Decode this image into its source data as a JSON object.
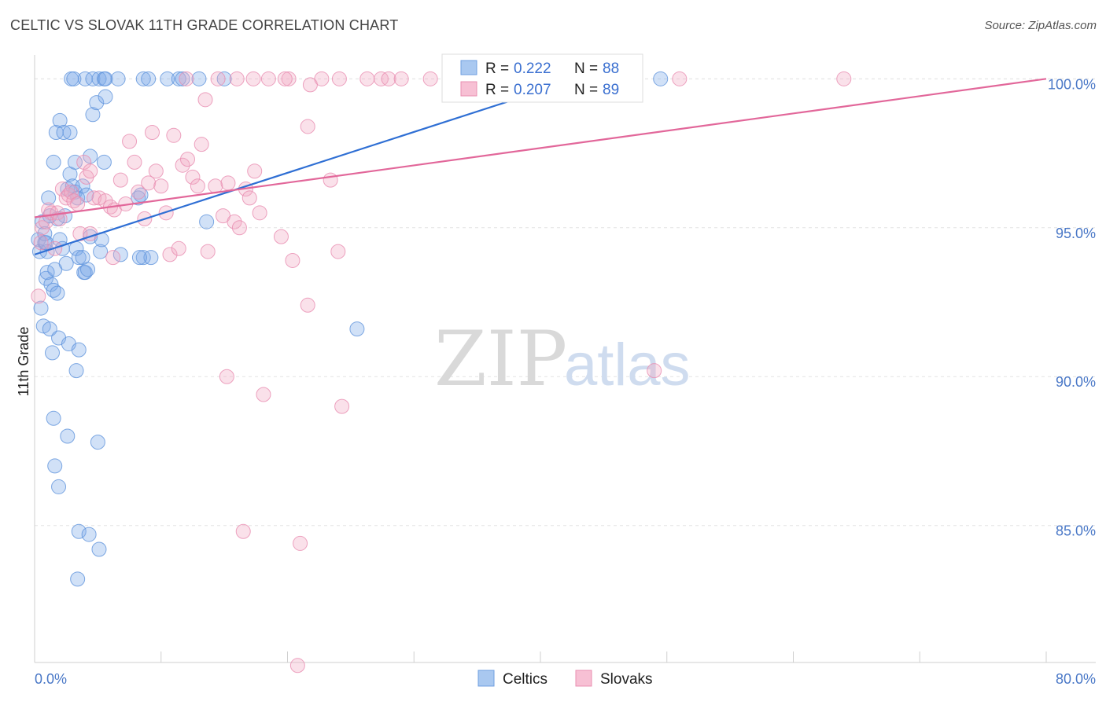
{
  "chart_data": {
    "type": "scatter",
    "title": "CELTIC VS SLOVAK 11TH GRADE CORRELATION CHART",
    "source": "Source: ZipAtlas.com",
    "ylabel": "11th Grade",
    "xlim": [
      0,
      80
    ],
    "ylim": [
      80.4,
      100.8
    ],
    "x_tick_labels": {
      "left": "0.0%",
      "right": "80.0%"
    },
    "y_ticks": [
      {
        "value": 100,
        "label": "100.0%"
      },
      {
        "value": 95,
        "label": "95.0%"
      },
      {
        "value": 90,
        "label": "90.0%"
      },
      {
        "value": 85,
        "label": "85.0%"
      }
    ],
    "legend_stats": [
      {
        "r_label": "R =",
        "r_value": "0.222",
        "n_label": "N =",
        "n_value": "88"
      },
      {
        "r_label": "R =",
        "r_value": "0.207",
        "n_label": "N =",
        "n_value": "89"
      }
    ],
    "series": [
      {
        "name": "Celtics",
        "color": "#7aaae8",
        "line_color": "#2f6fd4",
        "trend": {
          "x0": 0,
          "y0": 94.1,
          "x1": 43,
          "y1": 100.0
        },
        "points": [
          [
            0.3,
            94.6
          ],
          [
            0.4,
            94.2
          ],
          [
            0.6,
            95.2
          ],
          [
            0.8,
            94.5
          ],
          [
            0.9,
            93.3
          ],
          [
            1.0,
            93.5
          ],
          [
            1.1,
            96.0
          ],
          [
            1.2,
            95.4
          ],
          [
            0.5,
            92.3
          ],
          [
            0.7,
            91.7
          ],
          [
            1.3,
            93.1
          ],
          [
            1.5,
            92.9
          ],
          [
            1.6,
            93.6
          ],
          [
            1.8,
            92.8
          ],
          [
            2.0,
            94.6
          ],
          [
            2.2,
            94.3
          ],
          [
            2.4,
            95.4
          ],
          [
            2.6,
            96.3
          ],
          [
            2.8,
            96.8
          ],
          [
            3.0,
            96.4
          ],
          [
            3.2,
            96.2
          ],
          [
            3.4,
            96.0
          ],
          [
            1.5,
            97.2
          ],
          [
            1.7,
            98.2
          ],
          [
            2.0,
            98.6
          ],
          [
            2.3,
            98.2
          ],
          [
            2.8,
            98.2
          ],
          [
            3.2,
            97.2
          ],
          [
            4.6,
            98.8
          ],
          [
            4.9,
            99.2
          ],
          [
            5.6,
            99.4
          ],
          [
            5.5,
            97.2
          ],
          [
            4.4,
            97.4
          ],
          [
            3.3,
            94.3
          ],
          [
            3.5,
            94.0
          ],
          [
            3.8,
            94.0
          ],
          [
            3.9,
            93.5
          ],
          [
            4.0,
            93.5
          ],
          [
            4.2,
            93.6
          ],
          [
            5.2,
            94.2
          ],
          [
            4.4,
            94.7
          ],
          [
            5.3,
            94.6
          ],
          [
            1.0,
            94.2
          ],
          [
            0.8,
            94.8
          ],
          [
            0.9,
            94.5
          ],
          [
            1.2,
            91.6
          ],
          [
            1.4,
            90.8
          ],
          [
            1.9,
            91.3
          ],
          [
            2.7,
            91.1
          ],
          [
            3.3,
            90.2
          ],
          [
            3.5,
            90.9
          ],
          [
            1.5,
            88.6
          ],
          [
            2.6,
            88.0
          ],
          [
            5.0,
            87.8
          ],
          [
            1.6,
            87.0
          ],
          [
            1.9,
            86.3
          ],
          [
            3.5,
            84.8
          ],
          [
            4.3,
            84.7
          ],
          [
            5.1,
            84.2
          ],
          [
            3.4,
            83.2
          ],
          [
            8.6,
            94.0
          ],
          [
            9.2,
            94.0
          ],
          [
            8.3,
            94.0
          ],
          [
            8.2,
            96.0
          ],
          [
            8.4,
            96.1
          ],
          [
            13.6,
            95.2
          ],
          [
            25.5,
            91.6
          ],
          [
            2.9,
            100.0
          ],
          [
            3.1,
            100.0
          ],
          [
            4.0,
            100.0
          ],
          [
            4.6,
            100.0
          ],
          [
            5.1,
            100.0
          ],
          [
            5.5,
            100.0
          ],
          [
            5.6,
            100.0
          ],
          [
            6.6,
            100.0
          ],
          [
            8.6,
            100.0
          ],
          [
            9.0,
            100.0
          ],
          [
            10.5,
            100.0
          ],
          [
            11.4,
            100.0
          ],
          [
            11.7,
            100.0
          ],
          [
            13.0,
            100.0
          ],
          [
            15.0,
            100.0
          ],
          [
            49.5,
            100.0
          ],
          [
            3.8,
            96.4
          ],
          [
            6.8,
            94.1
          ],
          [
            4.1,
            96.1
          ],
          [
            2.5,
            93.8
          ],
          [
            1.8,
            95.3
          ]
        ]
      },
      {
        "name": "Slovaks",
        "color": "#f2a8c4",
        "line_color": "#e2679a",
        "trend": {
          "x0": 0,
          "y0": 95.35,
          "x1": 80,
          "y1": 100.0
        },
        "points": [
          [
            0.3,
            92.7
          ],
          [
            0.5,
            94.5
          ],
          [
            0.6,
            95.0
          ],
          [
            0.9,
            95.2
          ],
          [
            1.1,
            95.6
          ],
          [
            1.3,
            95.5
          ],
          [
            1.6,
            94.3
          ],
          [
            1.8,
            95.5
          ],
          [
            2.0,
            95.3
          ],
          [
            2.2,
            96.3
          ],
          [
            2.5,
            96.0
          ],
          [
            2.7,
            96.1
          ],
          [
            2.9,
            96.2
          ],
          [
            3.1,
            95.9
          ],
          [
            3.4,
            95.8
          ],
          [
            3.6,
            94.8
          ],
          [
            3.9,
            97.2
          ],
          [
            4.1,
            96.7
          ],
          [
            4.4,
            96.9
          ],
          [
            4.7,
            96.0
          ],
          [
            5.1,
            96.0
          ],
          [
            5.6,
            95.9
          ],
          [
            6.0,
            95.7
          ],
          [
            6.3,
            95.6
          ],
          [
            6.8,
            96.6
          ],
          [
            7.2,
            95.8
          ],
          [
            7.5,
            97.9
          ],
          [
            7.9,
            97.2
          ],
          [
            8.2,
            96.2
          ],
          [
            8.7,
            95.3
          ],
          [
            9.0,
            96.5
          ],
          [
            9.3,
            98.2
          ],
          [
            9.6,
            96.9
          ],
          [
            10.0,
            96.4
          ],
          [
            10.4,
            95.5
          ],
          [
            10.7,
            94.1
          ],
          [
            11.0,
            98.1
          ],
          [
            11.4,
            94.3
          ],
          [
            11.7,
            97.1
          ],
          [
            12.1,
            97.3
          ],
          [
            12.5,
            96.7
          ],
          [
            12.9,
            96.4
          ],
          [
            13.2,
            97.8
          ],
          [
            13.7,
            94.2
          ],
          [
            14.3,
            96.4
          ],
          [
            14.9,
            95.4
          ],
          [
            15.3,
            96.5
          ],
          [
            15.8,
            95.2
          ],
          [
            16.2,
            95.0
          ],
          [
            16.7,
            96.3
          ],
          [
            17.0,
            96.0
          ],
          [
            17.4,
            96.9
          ],
          [
            17.8,
            95.5
          ],
          [
            19.5,
            94.7
          ],
          [
            20.4,
            93.9
          ],
          [
            21.6,
            98.4
          ],
          [
            21.6,
            92.4
          ],
          [
            23.4,
            96.6
          ],
          [
            24.0,
            94.2
          ],
          [
            24.3,
            89.0
          ],
          [
            15.2,
            90.0
          ],
          [
            18.1,
            89.4
          ],
          [
            16.5,
            84.8
          ],
          [
            21.0,
            84.4
          ],
          [
            20.8,
            80.3
          ],
          [
            49.0,
            90.2
          ],
          [
            6.2,
            94.0
          ],
          [
            4.4,
            94.8
          ],
          [
            17.3,
            100.0
          ],
          [
            20.1,
            100.0
          ],
          [
            21.8,
            99.8
          ],
          [
            22.7,
            100.0
          ],
          [
            24.1,
            100.0
          ],
          [
            26.3,
            100.0
          ],
          [
            27.4,
            100.0
          ],
          [
            28.0,
            100.0
          ],
          [
            29.0,
            100.0
          ],
          [
            31.3,
            100.0
          ],
          [
            35.0,
            100.0
          ],
          [
            38.0,
            100.0
          ],
          [
            43.0,
            100.0
          ],
          [
            51.0,
            100.0
          ],
          [
            64.0,
            100.0
          ],
          [
            13.5,
            99.3
          ],
          [
            14.5,
            100.0
          ],
          [
            16.0,
            100.0
          ],
          [
            18.5,
            100.0
          ],
          [
            19.8,
            100.0
          ],
          [
            12.0,
            100.0
          ]
        ]
      }
    ]
  },
  "watermark": {
    "part1": "ZIP",
    "part2": "atlas"
  }
}
